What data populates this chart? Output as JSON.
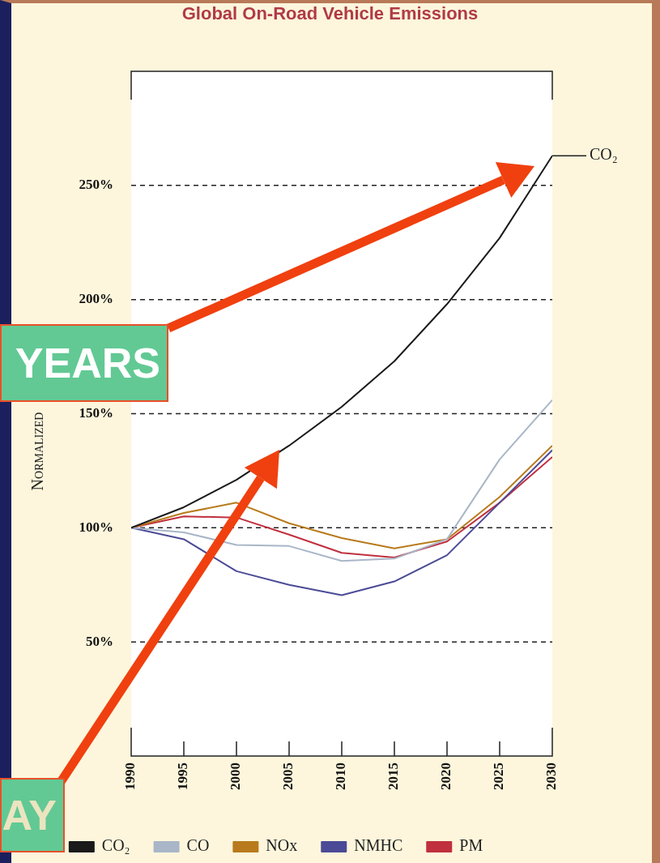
{
  "chart_data": {
    "type": "line",
    "title": "Global On-Road Vehicle Emissions",
    "ylabel": "Normalized",
    "x": [
      1990,
      1995,
      2000,
      2005,
      2010,
      2015,
      2020,
      2025,
      2030
    ],
    "series": [
      {
        "name": "CO₂",
        "color": "#1a1a1a",
        "values": [
          100,
          109,
          121,
          136,
          153,
          173,
          198,
          227,
          263
        ]
      },
      {
        "name": "CO",
        "color": "#a9b6c8",
        "values": [
          100,
          98,
          92.5,
          92,
          85.5,
          86.5,
          95,
          130,
          156
        ]
      },
      {
        "name": "NOx",
        "color": "#b87a1c",
        "values": [
          100,
          106.5,
          111,
          102,
          95.5,
          91,
          95,
          113.5,
          136
        ]
      },
      {
        "name": "NMHC",
        "color": "#4b4a96",
        "values": [
          100,
          95,
          81,
          75,
          70.5,
          76.5,
          88,
          111,
          134
        ]
      },
      {
        "name": "PM",
        "color": "#c0303e",
        "values": [
          100,
          105,
          104.5,
          97,
          89,
          87,
          94,
          111,
          131
        ]
      }
    ],
    "xlim": [
      1990,
      2030
    ],
    "xticks": [
      1990,
      1995,
      2000,
      2005,
      2010,
      2015,
      2020,
      2025,
      2030
    ],
    "ylim": [
      0,
      300
    ],
    "yticks": [
      {
        "value": 50,
        "label": "50%"
      },
      {
        "value": 100,
        "label": "100%"
      },
      {
        "value": 150,
        "label": "150%"
      },
      {
        "value": 200,
        "label": "200%"
      },
      {
        "value": 250,
        "label": "250%"
      }
    ],
    "grid": "y",
    "legend": "bottom",
    "marker": "none",
    "line_style": "solid",
    "annotations": [
      {
        "text": "CO₂",
        "x": 2030,
        "y": 263
      },
      "YEARS",
      "AY"
    ]
  }
}
